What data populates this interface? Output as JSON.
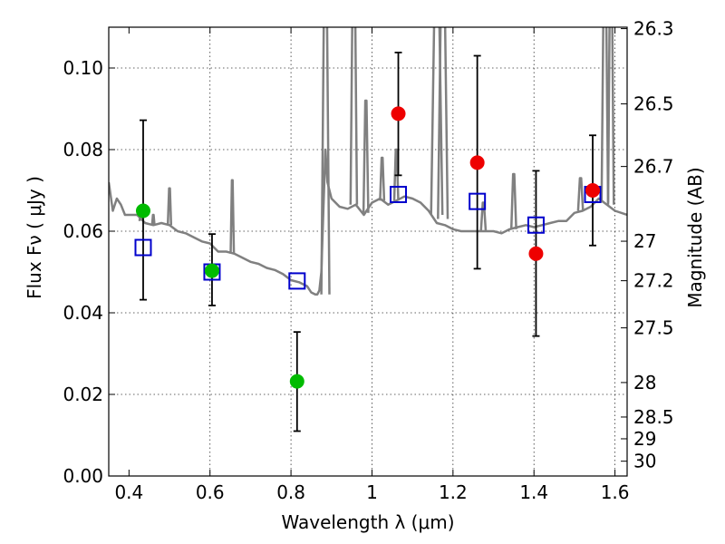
{
  "chart_data": {
    "type": "scatter",
    "xlabel": "Wavelength  λ (μm)",
    "ylabel": "Flux  Fν  ( μJy )",
    "y2label": "Magnitude (AB)",
    "xlim": [
      0.35,
      1.63
    ],
    "ylim": [
      0.0,
      0.11
    ],
    "x_ticks": [
      0.4,
      0.6,
      0.8,
      1.0,
      1.2,
      1.4,
      1.6
    ],
    "x_tick_labels": [
      "0.4",
      "0.6",
      "0.8",
      "1",
      "1.2",
      "1.4",
      "1.6"
    ],
    "y_ticks": [
      0.0,
      0.02,
      0.04,
      0.06,
      0.08,
      0.1
    ],
    "y_tick_labels": [
      "0.00",
      "0.02",
      "0.04",
      "0.06",
      "0.08",
      "0.10"
    ],
    "mag_ticks": [
      "26.3",
      "26.5",
      "26.7",
      "27",
      "27.2",
      "27.5",
      "28",
      "28.5",
      "29",
      "30"
    ],
    "grid": true,
    "colors": {
      "template": "#808080",
      "green": "#00bb00",
      "red": "#ee0000",
      "model_box": "#0000cc",
      "error_bar": "#000000"
    },
    "series": [
      {
        "marker": "green-circle",
        "x": [
          0.435,
          0.605,
          0.815
        ],
        "y": [
          0.065,
          0.0503,
          0.0232
        ],
        "err_low": [
          0.0432,
          0.0418,
          0.011
        ],
        "err_high": [
          0.0872,
          0.0593,
          0.0353
        ]
      },
      {
        "marker": "red-circle",
        "x": [
          1.065,
          1.26,
          1.405,
          1.545
        ],
        "y": [
          0.0888,
          0.0768,
          0.0545,
          0.07
        ],
        "err_low": [
          0.0737,
          0.0508,
          0.0343,
          0.0565
        ],
        "err_high": [
          0.1038,
          0.103,
          0.0748,
          0.0835
        ]
      },
      {
        "marker": "blue-open-square",
        "x": [
          0.435,
          0.605,
          0.815,
          1.065,
          1.26,
          1.405,
          1.545
        ],
        "y": [
          0.056,
          0.05,
          0.0478,
          0.069,
          0.0673,
          0.0615,
          0.069
        ]
      }
    ],
    "template_spectrum": {
      "x": [
        0.35,
        0.36,
        0.37,
        0.38,
        0.39,
        0.4,
        0.42,
        0.44,
        0.46,
        0.48,
        0.5,
        0.52,
        0.54,
        0.56,
        0.58,
        0.6,
        0.62,
        0.64,
        0.66,
        0.68,
        0.7,
        0.72,
        0.74,
        0.76,
        0.78,
        0.8,
        0.82,
        0.84,
        0.85,
        0.86,
        0.865,
        0.87,
        0.875,
        0.88,
        0.885,
        0.89,
        0.9,
        0.92,
        0.94,
        0.96,
        0.98,
        1.0,
        1.02,
        1.04,
        1.06,
        1.08,
        1.1,
        1.12,
        1.14,
        1.16,
        1.18,
        1.2,
        1.22,
        1.24,
        1.26,
        1.28,
        1.3,
        1.32,
        1.34,
        1.36,
        1.38,
        1.4,
        1.42,
        1.44,
        1.46,
        1.48,
        1.5,
        1.52,
        1.54,
        1.56,
        1.58,
        1.6,
        1.63
      ],
      "y": [
        0.072,
        0.065,
        0.068,
        0.0665,
        0.064,
        0.064,
        0.064,
        0.062,
        0.0615,
        0.062,
        0.0615,
        0.06,
        0.0595,
        0.0585,
        0.0575,
        0.057,
        0.055,
        0.055,
        0.0545,
        0.0535,
        0.0525,
        0.052,
        0.051,
        0.0505,
        0.0495,
        0.048,
        0.0475,
        0.0465,
        0.045,
        0.0445,
        0.0445,
        0.0455,
        0.05,
        0.065,
        0.08,
        0.072,
        0.068,
        0.066,
        0.0655,
        0.0665,
        0.064,
        0.067,
        0.068,
        0.0665,
        0.0675,
        0.0685,
        0.068,
        0.067,
        0.065,
        0.062,
        0.0615,
        0.0605,
        0.06,
        0.06,
        0.06,
        0.06,
        0.06,
        0.0595,
        0.0605,
        0.061,
        0.0615,
        0.061,
        0.0615,
        0.062,
        0.0625,
        0.0625,
        0.0645,
        0.065,
        0.066,
        0.068,
        0.0665,
        0.065,
        0.064
      ]
    }
  }
}
